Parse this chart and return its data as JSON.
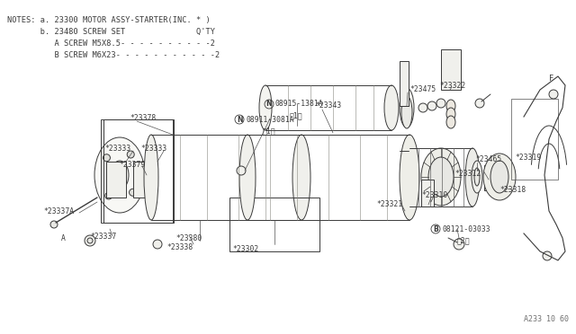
{
  "bg_color": "#ffffff",
  "line_color": "#3a3a3a",
  "text_color": "#3a3a3a",
  "fig_width": 6.4,
  "fig_height": 3.72,
  "notes_lines": [
    "NOTES: a. 23300 MOTOR ASSY-STARTER(INC. * )",
    "       b. 23480 SCREW SET               Q'TY",
    "          A SCREW M5X8.5- - - - - - - - - -2",
    "          B SCREW M6X23- - - - - - - - - - -2"
  ],
  "footer_text": "A233 10 60"
}
